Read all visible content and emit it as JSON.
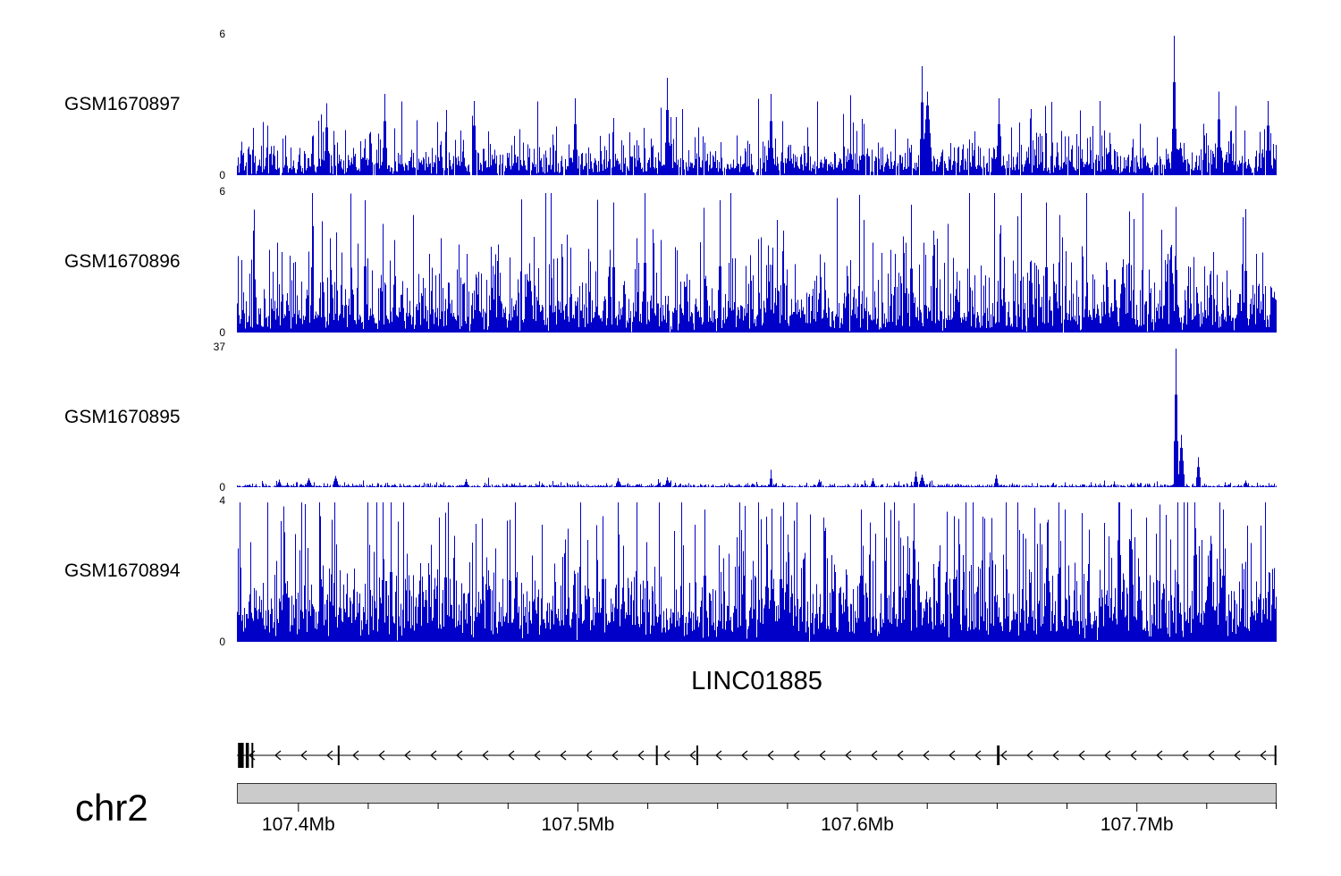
{
  "chart_data": {
    "type": "area",
    "subtype": "genome-coverage-tracks",
    "chromosome": "chr2",
    "region_mb": [
      107.378,
      107.75
    ],
    "axis": {
      "unit": "Mb",
      "major_ticks_mb": [
        107.4,
        107.5,
        107.6,
        107.7
      ],
      "major_tick_labels": [
        "107.4Mb",
        "107.5Mb",
        "107.6Mb",
        "107.7Mb"
      ],
      "minor_tick_interval_mb": 0.025
    },
    "tracks": [
      {
        "name": "GSM1670897",
        "ymin": 0,
        "ymax": 6,
        "color": "#0000C8",
        "signal": {
          "seed": 18971,
          "scale": 0.55,
          "offset": 0.35,
          "density": 0.94,
          "spikes": [
            {
              "pos": 0.901,
              "value": 6.0,
              "width": 2
            },
            {
              "pos": 0.659,
              "value": 4.7,
              "width": 2
            },
            {
              "pos": 0.664,
              "value": 3.6,
              "width": 5
            },
            {
              "pos": 0.414,
              "value": 4.2,
              "width": 2
            },
            {
              "pos": 0.513,
              "value": 3.5,
              "width": 2
            },
            {
              "pos": 0.142,
              "value": 3.5,
              "width": 2
            },
            {
              "pos": 0.086,
              "value": 3.1,
              "width": 2
            },
            {
              "pos": 0.228,
              "value": 3.2,
              "width": 2
            },
            {
              "pos": 0.325,
              "value": 3.3,
              "width": 2
            },
            {
              "pos": 0.733,
              "value": 3.3,
              "width": 2
            },
            {
              "pos": 0.944,
              "value": 3.6,
              "width": 2
            },
            {
              "pos": 0.991,
              "value": 3.2,
              "width": 2
            }
          ]
        }
      },
      {
        "name": "GSM1670896",
        "ymin": 0,
        "ymax": 6,
        "color": "#0000C8",
        "signal": {
          "seed": 18962,
          "scale": 1.2,
          "offset": 0.5,
          "density": 1.0,
          "spikes": [
            {
              "pos": 0.392,
              "value": 6.0,
              "width": 1
            },
            {
              "pos": 0.123,
              "value": 5.7,
              "width": 1
            },
            {
              "pos": 0.362,
              "value": 5.6,
              "width": 1
            },
            {
              "pos": 0.464,
              "value": 5.7,
              "width": 1
            },
            {
              "pos": 0.648,
              "value": 5.5,
              "width": 1
            },
            {
              "pos": 0.778,
              "value": 5.6,
              "width": 1
            },
            {
              "pos": 0.903,
              "value": 5.4,
              "width": 1
            },
            {
              "pos": 0.97,
              "value": 5.3,
              "width": 1
            }
          ]
        }
      },
      {
        "name": "GSM1670895",
        "ymin": 0,
        "ymax": 37,
        "color": "#0000C8",
        "signal": {
          "seed": 18953,
          "scale": 0.32,
          "offset": 0.25,
          "density": 0.98,
          "spikes": [
            {
              "pos": 0.903,
              "value": 37,
              "width": 2
            },
            {
              "pos": 0.908,
              "value": 14,
              "width": 3
            },
            {
              "pos": 0.924,
              "value": 8,
              "width": 2
            },
            {
              "pos": 0.095,
              "value": 3.0,
              "width": 3
            },
            {
              "pos": 0.069,
              "value": 2.4,
              "width": 3
            },
            {
              "pos": 0.04,
              "value": 2.0,
              "width": 2
            },
            {
              "pos": 0.22,
              "value": 2.2,
              "width": 2
            },
            {
              "pos": 0.366,
              "value": 2.4,
              "width": 2
            },
            {
              "pos": 0.414,
              "value": 2.6,
              "width": 2
            },
            {
              "pos": 0.513,
              "value": 4.6,
              "width": 1
            },
            {
              "pos": 0.56,
              "value": 2.0,
              "width": 2
            },
            {
              "pos": 0.611,
              "value": 2.4,
              "width": 2
            },
            {
              "pos": 0.653,
              "value": 4.2,
              "width": 2
            },
            {
              "pos": 0.659,
              "value": 3.4,
              "width": 3
            },
            {
              "pos": 0.73,
              "value": 3.4,
              "width": 2
            },
            {
              "pos": 0.97,
              "value": 1.8,
              "width": 2
            }
          ]
        }
      },
      {
        "name": "GSM1670894",
        "ymin": 0,
        "ymax": 4,
        "color": "#0000C8",
        "signal": {
          "seed": 18944,
          "scale": 1.0,
          "offset": 0.6,
          "density": 1.0,
          "spikes": [
            {
              "pos": 0.148,
              "value": 4.0,
              "width": 1
            },
            {
              "pos": 0.08,
              "value": 3.6,
              "width": 1
            },
            {
              "pos": 0.2,
              "value": 3.7,
              "width": 1
            },
            {
              "pos": 0.262,
              "value": 3.5,
              "width": 1
            },
            {
              "pos": 0.352,
              "value": 3.6,
              "width": 1
            },
            {
              "pos": 0.45,
              "value": 3.8,
              "width": 1
            },
            {
              "pos": 0.523,
              "value": 3.6,
              "width": 1
            },
            {
              "pos": 0.6,
              "value": 3.8,
              "width": 1
            },
            {
              "pos": 0.69,
              "value": 3.6,
              "width": 1
            },
            {
              "pos": 0.78,
              "value": 3.5,
              "width": 1
            },
            {
              "pos": 0.86,
              "value": 3.6,
              "width": 1
            },
            {
              "pos": 0.948,
              "value": 3.8,
              "width": 1
            }
          ]
        }
      }
    ],
    "gene_track": {
      "title": "LINC01885",
      "strand": "-",
      "arrow_spacing_px": 29,
      "exons": [
        {
          "pos": 0.001,
          "width_frac": 0.0055,
          "tall": true
        },
        {
          "pos": 0.0085,
          "width_frac": 0.003,
          "tall": true
        },
        {
          "pos": 0.014,
          "width_frac": 0.0015,
          "tall": true
        },
        {
          "pos": 0.097,
          "width_frac": 0.0013,
          "tall": false
        },
        {
          "pos": 0.403,
          "width_frac": 0.0013,
          "tall": false
        },
        {
          "pos": 0.442,
          "width_frac": 0.0013,
          "tall": false
        },
        {
          "pos": 0.731,
          "width_frac": 0.0025,
          "tall": false
        },
        {
          "pos": 0.998,
          "width_frac": 0.0013,
          "tall": false
        }
      ]
    },
    "ideogram": {
      "label": "chr2",
      "bar_color": "#CBCBCB",
      "border_color": "#333333"
    }
  }
}
